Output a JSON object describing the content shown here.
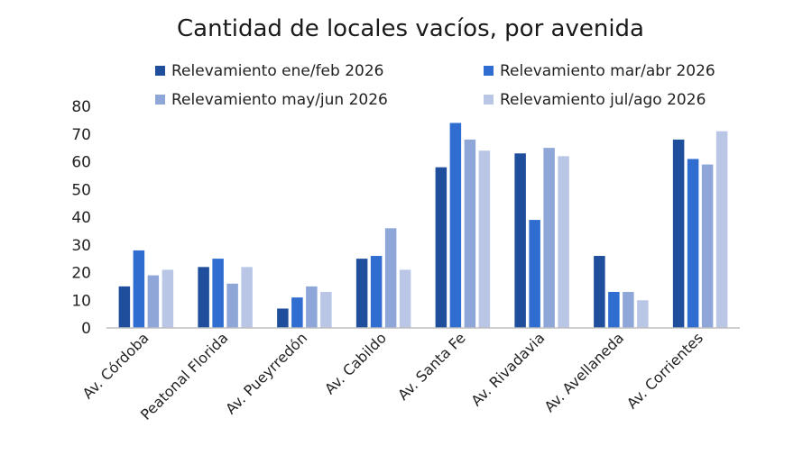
{
  "chart_data": {
    "type": "bar",
    "title": "Cantidad de locales vacíos, por avenida",
    "xlabel": "",
    "ylabel": "",
    "ylim": [
      0,
      80
    ],
    "yticks": [
      0,
      10,
      20,
      30,
      40,
      50,
      60,
      70,
      80
    ],
    "grid": false,
    "legend_position": "top",
    "categories": [
      "Av. Córdoba",
      "Peatonal Florida",
      "Av. Pueyrredón",
      "Av. Cabildo",
      "Av. Santa Fe",
      "Av. Rivadavia",
      "Av. Avellaneda",
      "Av. Corrientes"
    ],
    "series": [
      {
        "name": "Relevamiento ene/feb 2026",
        "color": "#1f4e9c",
        "values": [
          15,
          22,
          7,
          25,
          58,
          63,
          26,
          68
        ]
      },
      {
        "name": "Relevamiento mar/abr 2026",
        "color": "#2f6dd0",
        "values": [
          28,
          25,
          11,
          26,
          74,
          39,
          13,
          61
        ]
      },
      {
        "name": "Relevamiento may/jun 2026",
        "color": "#8fa7d8",
        "values": [
          19,
          16,
          15,
          36,
          68,
          65,
          13,
          59
        ]
      },
      {
        "name": "Relevamiento jul/ago 2026",
        "color": "#b9c6e6",
        "values": [
          21,
          22,
          13,
          21,
          64,
          62,
          10,
          71
        ]
      }
    ]
  }
}
